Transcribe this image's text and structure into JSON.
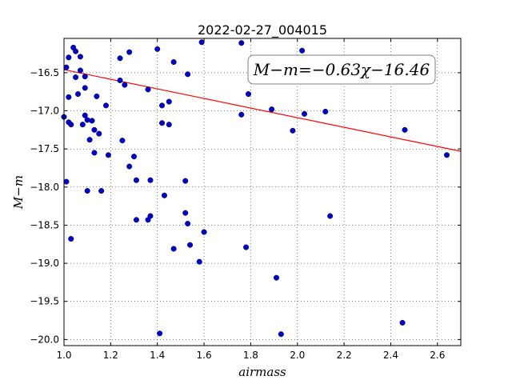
{
  "chart_data": {
    "type": "scatter",
    "title": "2022-02-27_004015",
    "xlabel": "airmass",
    "ylabel": "M−m",
    "xlim": [
      1.0,
      2.7
    ],
    "ylim": [
      -20.08,
      -16.05
    ],
    "x_ticks": [
      1.0,
      1.2,
      1.4,
      1.6,
      1.8,
      2.0,
      2.2,
      2.4,
      2.6
    ],
    "x_tick_labels": [
      "1.0",
      "1.2",
      "1.4",
      "1.6",
      "1.8",
      "2.0",
      "2.2",
      "2.4",
      "2.6"
    ],
    "y_ticks": [
      -16.5,
      -17.0,
      -17.5,
      -18.0,
      -18.5,
      -19.0,
      -19.5,
      -20.0
    ],
    "y_tick_labels": [
      "−16.5",
      "−17.0",
      "−17.5",
      "−18.0",
      "−18.5",
      "−19.0",
      "−19.5",
      "−20.0"
    ],
    "grid": true,
    "annotation": "M−m=−0.63χ−16.46",
    "fit_line": {
      "slope": -0.63,
      "intercept": -16.46,
      "color": "#ff0000"
    },
    "point_color": "#0000cc",
    "points": [
      [
        1.0,
        -17.08
      ],
      [
        1.01,
        -17.93
      ],
      [
        1.01,
        -16.43
      ],
      [
        1.02,
        -16.3
      ],
      [
        1.02,
        -16.82
      ],
      [
        1.02,
        -17.15
      ],
      [
        1.03,
        -17.18
      ],
      [
        1.03,
        -18.68
      ],
      [
        1.04,
        -16.17
      ],
      [
        1.05,
        -16.22
      ],
      [
        1.05,
        -16.56
      ],
      [
        1.06,
        -16.78
      ],
      [
        1.07,
        -16.29
      ],
      [
        1.07,
        -16.47
      ],
      [
        1.08,
        -17.18
      ],
      [
        1.09,
        -17.06
      ],
      [
        1.09,
        -16.55
      ],
      [
        1.09,
        -16.7
      ],
      [
        1.1,
        -18.05
      ],
      [
        1.1,
        -17.12
      ],
      [
        1.11,
        -17.38
      ],
      [
        1.12,
        -17.13
      ],
      [
        1.13,
        -17.25
      ],
      [
        1.13,
        -17.55
      ],
      [
        1.14,
        -16.81
      ],
      [
        1.15,
        -17.3
      ],
      [
        1.16,
        -18.05
      ],
      [
        1.18,
        -16.93
      ],
      [
        1.19,
        -17.58
      ],
      [
        1.24,
        -16.31
      ],
      [
        1.24,
        -16.6
      ],
      [
        1.25,
        -17.39
      ],
      [
        1.26,
        -16.66
      ],
      [
        1.28,
        -17.73
      ],
      [
        1.28,
        -16.23
      ],
      [
        1.3,
        -17.6
      ],
      [
        1.31,
        -17.91
      ],
      [
        1.31,
        -18.43
      ],
      [
        1.36,
        -18.43
      ],
      [
        1.36,
        -16.72
      ],
      [
        1.37,
        -17.91
      ],
      [
        1.37,
        -18.38
      ],
      [
        1.4,
        -16.19
      ],
      [
        1.41,
        -19.92
      ],
      [
        1.42,
        -16.93
      ],
      [
        1.42,
        -17.16
      ],
      [
        1.43,
        -18.11
      ],
      [
        1.45,
        -16.88
      ],
      [
        1.45,
        -17.18
      ],
      [
        1.47,
        -16.36
      ],
      [
        1.47,
        -18.81
      ],
      [
        1.52,
        -18.34
      ],
      [
        1.52,
        -17.92
      ],
      [
        1.53,
        -18.48
      ],
      [
        1.53,
        -16.52
      ],
      [
        1.54,
        -18.76
      ],
      [
        1.58,
        -18.98
      ],
      [
        1.59,
        -16.1
      ],
      [
        1.6,
        -18.59
      ],
      [
        1.76,
        -16.11
      ],
      [
        1.76,
        -17.05
      ],
      [
        1.78,
        -18.79
      ],
      [
        1.79,
        -16.78
      ],
      [
        1.89,
        -16.98
      ],
      [
        1.91,
        -19.19
      ],
      [
        1.93,
        -19.93
      ],
      [
        1.98,
        -17.26
      ],
      [
        2.02,
        -16.21
      ],
      [
        2.03,
        -17.04
      ],
      [
        2.12,
        -17.01
      ],
      [
        2.14,
        -18.38
      ],
      [
        2.45,
        -19.78
      ],
      [
        2.46,
        -17.25
      ],
      [
        2.64,
        -17.58
      ]
    ]
  }
}
